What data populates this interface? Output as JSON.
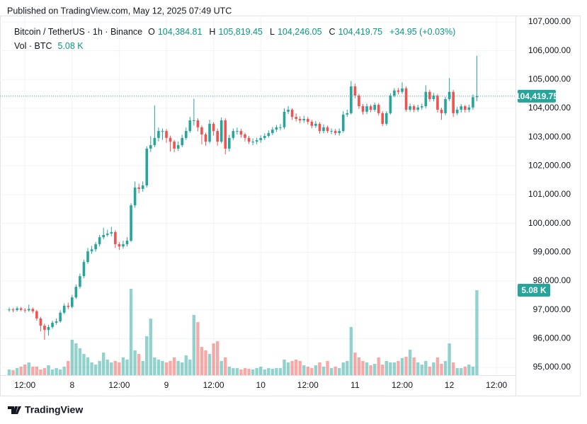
{
  "header": "Published on TradingView.com, May 12, 2025 07:49 UTC",
  "footer": "TradingView",
  "chart_data": {
    "type": "candlestick",
    "title": "Bitcoin / TetherUS · 1h · Binance",
    "ohlc": [
      {
        "key": "O",
        "value": "104,384.81"
      },
      {
        "key": "H",
        "value": "105,819.45"
      },
      {
        "key": "L",
        "value": "104,246.05"
      },
      {
        "key": "C",
        "value": "104,419.75"
      }
    ],
    "change": "+34.95 (+0.03%)",
    "volume_legend": {
      "label": "Vol · BTC",
      "value": "5.08 K"
    },
    "up_color": "#26a69a",
    "down_color": "#ef5350",
    "volume_opacity": 0.5,
    "grid": true,
    "categories": [
      null,
      null,
      null,
      null,
      "12:00",
      null,
      null,
      null,
      null,
      null,
      null,
      null,
      null,
      null,
      null,
      null,
      "8",
      null,
      null,
      null,
      null,
      null,
      null,
      null,
      null,
      null,
      null,
      null,
      "12:00",
      null,
      null,
      null,
      null,
      null,
      null,
      null,
      null,
      null,
      null,
      null,
      "9",
      null,
      null,
      null,
      null,
      null,
      null,
      null,
      null,
      null,
      null,
      null,
      "12:00",
      null,
      null,
      null,
      null,
      null,
      null,
      null,
      null,
      null,
      null,
      null,
      "10",
      null,
      null,
      null,
      null,
      null,
      null,
      null,
      null,
      null,
      null,
      null,
      "12:00",
      null,
      null,
      null,
      null,
      null,
      null,
      null,
      null,
      null,
      null,
      null,
      "11",
      null,
      null,
      null,
      null,
      null,
      null,
      null,
      null,
      null,
      null,
      null,
      "12:00",
      null,
      null,
      null,
      null,
      null,
      null,
      null,
      null,
      null,
      null,
      null,
      "12",
      null,
      null,
      null,
      null,
      null,
      null,
      null,
      null,
      null,
      null,
      null,
      "12:00"
    ],
    "open": [
      97000,
      97010,
      96990,
      97050,
      97000,
      96980,
      97030,
      96950,
      96700,
      96450,
      96300,
      96400,
      96550,
      96600,
      96900,
      97140,
      97100,
      97430,
      97800,
      98170,
      98660,
      99030,
      99100,
      99280,
      99520,
      99600,
      99650,
      99700,
      99280,
      99200,
      99280,
      99400,
      100630,
      101250,
      101200,
      101320,
      102600,
      102720,
      102970,
      103210,
      103210,
      102970,
      102840,
      102600,
      102720,
      102970,
      103210,
      103580,
      103580,
      103340,
      103090,
      102840,
      103460,
      103210,
      102840,
      103580,
      102600,
      102970,
      103210,
      103210,
      103090,
      102970,
      102840,
      102840,
      102890,
      102970,
      103040,
      103140,
      103260,
      103340,
      103340,
      103880,
      103950,
      103700,
      103630,
      103580,
      103630,
      103530,
      103390,
      103460,
      103210,
      103340,
      103210,
      103210,
      103140,
      103210,
      103780,
      103830,
      104760,
      104440,
      104070,
      103880,
      104070,
      103950,
      104120,
      103830,
      103460,
      103830,
      104440,
      104620,
      104570,
      104690,
      103950,
      104070,
      103950,
      104030,
      104070,
      104570,
      104320,
      104440,
      103950,
      103830,
      104320,
      104570,
      103830,
      103950,
      104070,
      103950,
      104030,
      104384.81,
      null,
      null,
      null,
      null,
      null
    ],
    "high": [
      97080,
      97060,
      97120,
      97100,
      97060,
      97180,
      97080,
      97000,
      96760,
      96520,
      96480,
      96620,
      96700,
      96980,
      97220,
      97250,
      97520,
      97880,
      98260,
      98740,
      99150,
      99220,
      99360,
      99600,
      99850,
      99780,
      99880,
      99760,
      99350,
      99400,
      99520,
      100700,
      101450,
      101380,
      101460,
      102680,
      103030,
      104100,
      103330,
      103300,
      103280,
      103050,
      102900,
      102850,
      103080,
      103330,
      103700,
      104330,
      103650,
      103400,
      103150,
      103600,
      103520,
      103300,
      103680,
      103650,
      103080,
      103300,
      103330,
      103290,
      103150,
      103040,
      102950,
      102980,
      103060,
      103130,
      103230,
      103350,
      103420,
      103450,
      104000,
      104080,
      104000,
      103820,
      103720,
      103740,
      103700,
      103600,
      103560,
      103520,
      103440,
      103400,
      103300,
      103280,
      103300,
      103900,
      103950,
      104950,
      104850,
      104500,
      104150,
      104160,
      104130,
      104200,
      104180,
      103900,
      103900,
      104520,
      104700,
      104700,
      104900,
      104760,
      104160,
      104130,
      104120,
      104160,
      104800,
      104640,
      104530,
      104500,
      104020,
      104400,
      105050,
      104640,
      104050,
      104150,
      104120,
      104130,
      104480,
      105819.45,
      null,
      null,
      null,
      null,
      null
    ],
    "low": [
      96930,
      96920,
      96940,
      96950,
      96900,
      96930,
      96880,
      96620,
      96250,
      95960,
      96100,
      96340,
      96480,
      96550,
      96850,
      97020,
      97050,
      97380,
      97740,
      98100,
      98600,
      98950,
      99020,
      99200,
      99450,
      99540,
      99560,
      99150,
      99080,
      99120,
      99200,
      99350,
      100550,
      101050,
      101100,
      101250,
      102480,
      102650,
      102850,
      102900,
      102800,
      102500,
      102480,
      102520,
      102650,
      102900,
      103150,
      103400,
      103200,
      102750,
      102700,
      102780,
      103050,
      102700,
      102780,
      102400,
      102500,
      102900,
      103080,
      102980,
      102850,
      102760,
      102720,
      102750,
      102800,
      102900,
      102980,
      103070,
      103180,
      103230,
      103280,
      103800,
      103600,
      103540,
      103480,
      103500,
      103440,
      103300,
      103320,
      103120,
      103130,
      103140,
      103100,
      103060,
      103050,
      103150,
      103700,
      103780,
      104350,
      103980,
      103780,
      103800,
      103860,
      103880,
      103750,
      103380,
      103400,
      103780,
      104380,
      104480,
      104500,
      103880,
      103880,
      103860,
      103880,
      103950,
      104000,
      104230,
      104240,
      103850,
      103600,
      103760,
      104250,
      103700,
      103760,
      103850,
      103850,
      103860,
      103950,
      104246.05,
      null,
      null,
      null,
      null,
      null
    ],
    "close": [
      97010,
      96990,
      97050,
      97000,
      96980,
      97030,
      96950,
      96700,
      96450,
      96300,
      96400,
      96550,
      96600,
      96900,
      97140,
      97100,
      97430,
      97800,
      98170,
      98660,
      99030,
      99100,
      99280,
      99520,
      99600,
      99650,
      99700,
      99280,
      99200,
      99280,
      99400,
      100630,
      101250,
      101200,
      101320,
      102600,
      102720,
      102970,
      103210,
      103210,
      102970,
      102840,
      102600,
      102720,
      102970,
      103210,
      103580,
      103580,
      103340,
      103090,
      102840,
      103460,
      103210,
      102840,
      103580,
      102600,
      102970,
      103210,
      103210,
      103090,
      102970,
      102840,
      102840,
      102890,
      102970,
      103040,
      103140,
      103260,
      103340,
      103340,
      103880,
      103950,
      103700,
      103630,
      103580,
      103630,
      103530,
      103390,
      103460,
      103210,
      103340,
      103210,
      103210,
      103140,
      103210,
      103780,
      103830,
      104760,
      104440,
      104070,
      103880,
      104070,
      103950,
      104120,
      103830,
      103460,
      103830,
      104440,
      104620,
      104570,
      104690,
      103950,
      104070,
      103950,
      104030,
      104070,
      104570,
      104320,
      104440,
      103950,
      103830,
      104320,
      104570,
      103830,
      103950,
      104070,
      103950,
      104030,
      104384.81,
      104419.75,
      null,
      null,
      null,
      null,
      null
    ],
    "volume": [
      340,
      300,
      420,
      510,
      630,
      760,
      510,
      510,
      340,
      420,
      590,
      340,
      420,
      340,
      510,
      850,
      2120,
      1900,
      1610,
      1270,
      1060,
      760,
      630,
      850,
      1350,
      930,
      760,
      850,
      760,
      1060,
      930,
      5160,
      1480,
      1270,
      850,
      2330,
      3380,
      1060,
      930,
      850,
      760,
      850,
      1060,
      850,
      760,
      1180,
      930,
      3600,
      3170,
      1690,
      1480,
      1270,
      1900,
      2030,
      850,
      1060,
      510,
      420,
      420,
      340,
      420,
      380,
      340,
      420,
      510,
      340,
      420,
      380,
      420,
      420,
      930,
      760,
      850,
      930,
      850,
      590,
      510,
      420,
      590,
      760,
      510,
      850,
      420,
      510,
      420,
      760,
      850,
      2880,
      1350,
      1060,
      850,
      760,
      590,
      680,
      1060,
      630,
      850,
      760,
      760,
      850,
      1020,
      1100,
      1520,
      1060,
      760,
      630,
      850,
      510,
      760,
      1060,
      680,
      850,
      1900,
      760,
      420,
      420,
      510,
      630,
      510,
      5080,
      null,
      null,
      null,
      null,
      null
    ],
    "ylim": [
      94730,
      107220
    ],
    "yticks": [
      {
        "value": 95000,
        "label": "95,000.00"
      },
      {
        "value": 96000,
        "label": "96,000.00"
      },
      {
        "value": 97000,
        "label": "97,000.00"
      },
      {
        "value": 98000,
        "label": "98,000.00"
      },
      {
        "value": 99000,
        "label": "99,000.00"
      },
      {
        "value": 100000,
        "label": "100,000.00"
      },
      {
        "value": 101000,
        "label": "101,000.00"
      },
      {
        "value": 102000,
        "label": "102,000.00"
      },
      {
        "value": 103000,
        "label": "103,000.00"
      },
      {
        "value": 104000,
        "label": "104,000.00"
      },
      {
        "value": 105000,
        "label": "105,000.00"
      },
      {
        "value": 106000,
        "label": "106,000.00"
      },
      {
        "value": 107000,
        "label": "107,000.00"
      }
    ],
    "y2lim": [
      0,
      21500
    ],
    "price_tag": {
      "value": 104419.75,
      "label": "104,419.75"
    },
    "volume_tag": {
      "value": 5080,
      "label": "5.08 K"
    }
  }
}
